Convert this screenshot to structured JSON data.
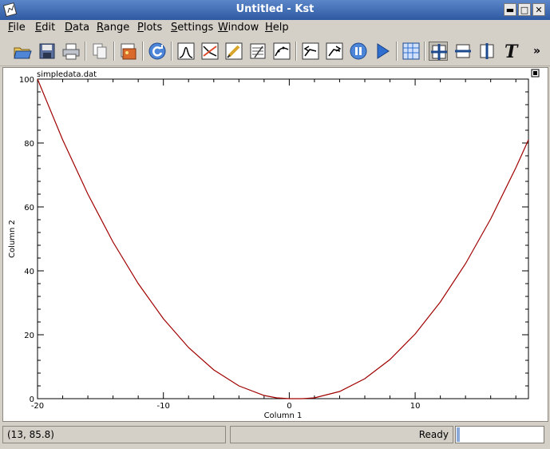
{
  "window": {
    "title": "Untitled - Kst"
  },
  "menu": [
    "File",
    "Edit",
    "Data",
    "Range",
    "Plots",
    "Settings",
    "Window",
    "Help"
  ],
  "toolbar": {
    "buttons": [
      "open-icon",
      "save-icon",
      "print-icon",
      "copy-icon",
      "export-image-icon",
      "reload-icon",
      "histogram-icon",
      "power-spectrum-icon",
      "edit-data-icon",
      "data-manager-icon",
      "fit-icon",
      "back-icon",
      "forward-icon",
      "pause-icon",
      "play-icon",
      "layout-icon",
      "xy-zoom-icon",
      "x-zoom-icon",
      "y-zoom-icon",
      "text-icon"
    ],
    "pressed": "xy-zoom-icon",
    "overflow": "»"
  },
  "plot": {
    "file_label": "simpledata.dat"
  },
  "chart_data": {
    "type": "line",
    "title": "",
    "xlabel": "Column 1",
    "ylabel": "Column 2",
    "xlim": [
      -20,
      19
    ],
    "ylim": [
      0,
      100
    ],
    "xticks": [
      -20,
      -10,
      0,
      10
    ],
    "yticks": [
      0,
      20,
      40,
      60,
      80,
      100
    ],
    "series": [
      {
        "color": "#a00000",
        "x": [
          -20,
          -18,
          -16,
          -14,
          -12,
          -10,
          -8,
          -6,
          -4,
          -2,
          -1,
          0,
          1,
          2,
          4,
          6,
          8,
          10,
          12,
          14,
          16,
          18,
          19
        ],
        "y": [
          100,
          81,
          64,
          49,
          36,
          25,
          16,
          9,
          4,
          1,
          0.25,
          0,
          0,
          0.25,
          2.25,
          6.25,
          12.25,
          20.25,
          30.25,
          42.25,
          56.25,
          72.25,
          81
        ]
      }
    ]
  },
  "status": {
    "coords": "(13, 85.8)",
    "state": "Ready",
    "progress": 0.03
  }
}
